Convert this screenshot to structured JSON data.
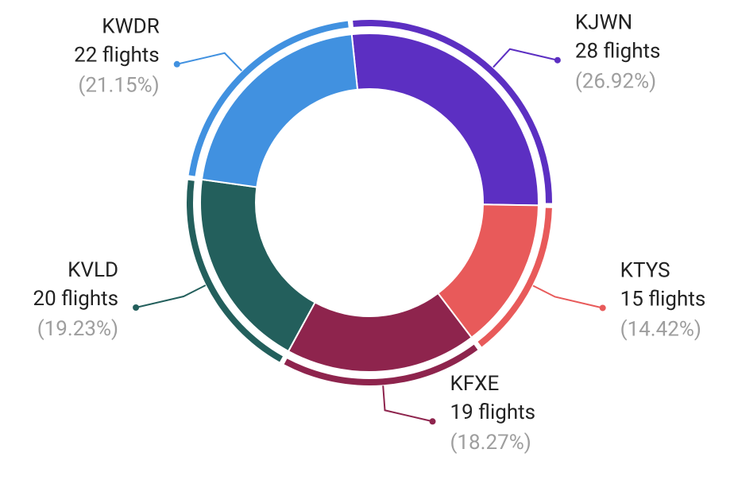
{
  "chart_data": {
    "type": "donut",
    "categories": [
      "KJWN",
      "KTYS",
      "KFXE",
      "KVLD",
      "KWDR"
    ],
    "values": [
      28,
      15,
      19,
      20,
      22
    ],
    "value_labels": [
      "28 flights",
      "15 flights",
      "19 flights",
      "20 flights",
      "22 flights"
    ],
    "percent_labels": [
      "(26.92%)",
      "(14.42%)",
      "(18.27%)",
      "(19.23%)",
      "(21.15%)"
    ],
    "colors": [
      "#5c2fc2",
      "#e85a5a",
      "#8e244d",
      "#235f5c",
      "#4191e0"
    ]
  }
}
